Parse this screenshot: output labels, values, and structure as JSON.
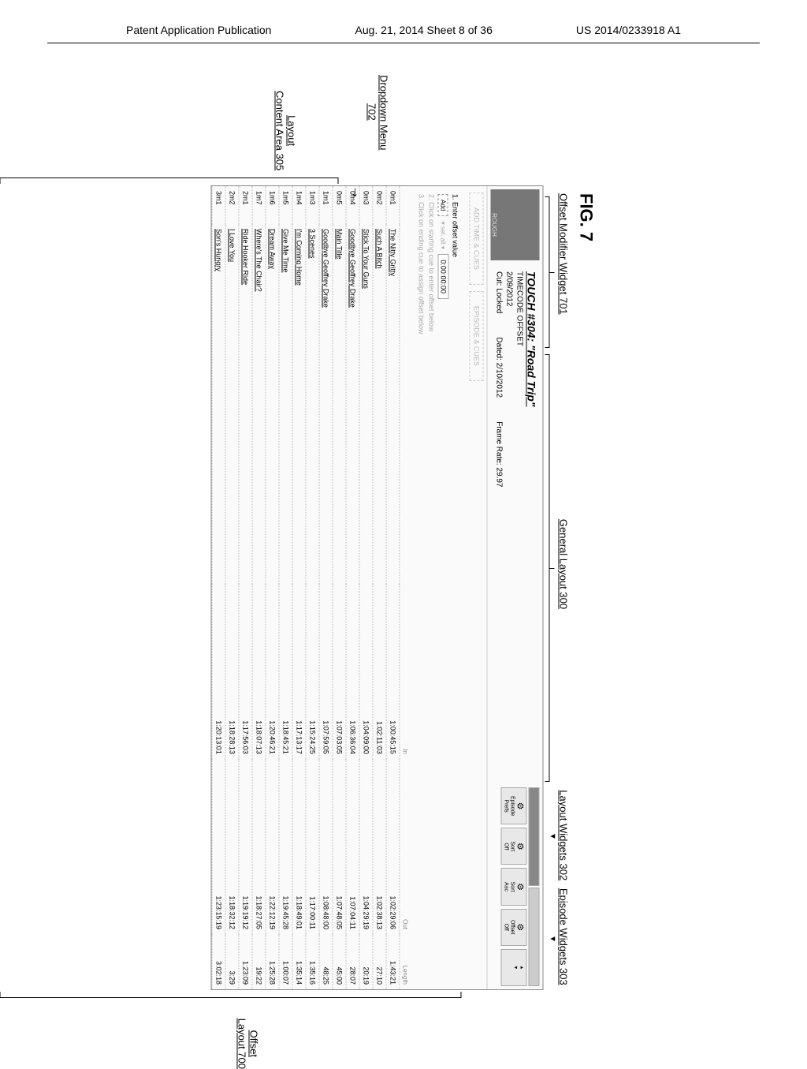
{
  "header": {
    "left": "Patent Application Publication",
    "center": "Aug. 21, 2014  Sheet 8 of 36",
    "right": "US 2014/0233918 A1"
  },
  "figure_label": "FIG. 7",
  "labels": {
    "offset_modifier": "Offset Modifier Widget 701",
    "general_layout": "General Layout 300",
    "layout_widgets": "Layout Widgets 302",
    "episode_widgets": "Episode Widgets 303",
    "dropdown_menu_a": "Dropdown Menu",
    "dropdown_menu_b": "702",
    "layout_content_a": "Layout",
    "layout_content_b": "Content Area 305",
    "offset_layout_a": "Offset",
    "offset_layout_b": "Layout 700"
  },
  "hdr": {
    "thumb_text": "ROUGH",
    "title": "TOUCH #304: \"Road Trip\"",
    "sub1": "TIMECODE OFFSET",
    "sub2": "2/09/2012",
    "cut": "Cut: Locked",
    "dated": "Dated: 2/10/2012",
    "frame": "Frame Rate: 29.97"
  },
  "btns": {
    "ep_prefs": "Episode\nPrefs",
    "sort_off": "Sort\nOff",
    "sort_asc": "Sort\nAsc",
    "offset_off": "Offset\nOff",
    "updown": "▴\n▾"
  },
  "ghost": {
    "a": "ADD TIME & CUES",
    "b": "EPISODE & CUES"
  },
  "steps": {
    "s1": "1.  Enter offset value",
    "dd": "Add",
    "dd_hint": "▾ sel. all  ▾",
    "entry": "0:00:00:00",
    "s2": "2.  Click on starting cue to enter offset below",
    "s3": "3.  Click on ending cue to assign offset below"
  },
  "thead": {
    "c1": "",
    "c2": "",
    "c3": "In",
    "c4": "Out",
    "c5": "Length"
  },
  "rows": [
    {
      "cue": "0m1",
      "title": "The Nitty Gritty",
      "in": "1:00:45:15",
      "out": "1:02:29:06",
      "len": "1:43:21"
    },
    {
      "cue": "0m2",
      "title": "Such A Bitch",
      "in": "1:02:11:03",
      "out": "1:02:38:13",
      "len": "27:10"
    },
    {
      "cue": "0m3",
      "title": "Stick To Your Guns",
      "in": "1:04:09:00",
      "out": "1:04:29:19",
      "len": "20:19"
    },
    {
      "cue": "0m4",
      "title": "Goodbye Geoffrey Drake",
      "in": "1:06:36:04",
      "out": "1:07:04:11",
      "len": "28:07"
    },
    {
      "cue": "0m5",
      "title": "Main Title",
      "in": "1:07:03:05",
      "out": "1:07:48:05",
      "len": "45:00"
    },
    {
      "cue": "1m1",
      "title": "Goodbye Geoffrey Drake",
      "in": "1:07:59:05",
      "out": "1:08:48:00",
      "len": "48:25"
    },
    {
      "cue": "1m3",
      "title": "3 Scenes",
      "in": "1:15:24:25",
      "out": "1:17:00:11",
      "len": "1:35:16"
    },
    {
      "cue": "1m4",
      "title": "I'm Coming Home",
      "in": "1:17:13:17",
      "out": "1:18:49:01",
      "len": "1:35:14"
    },
    {
      "cue": "1m5",
      "title": "Give Me Time",
      "in": "1:18:45:21",
      "out": "1:19:45:28",
      "len": "1:00:07"
    },
    {
      "cue": "1m6",
      "title": "Dream Away",
      "in": "1:20:46:21",
      "out": "1:22:12:19",
      "len": "1:25:28"
    },
    {
      "cue": "1m7",
      "title": "Where's The Chair?",
      "in": "1:18:07:13",
      "out": "1:18:27:05",
      "len": "19:22"
    },
    {
      "cue": "2m1",
      "title": "Ride Hooker Ride",
      "in": "1:17:56:03",
      "out": "1:19:19:12",
      "len": "1:23:09"
    },
    {
      "cue": "2m2",
      "title": "I Love You",
      "in": "1:18:28:13",
      "out": "1:18:32:12",
      "len": "3:29"
    },
    {
      "cue": "3m1",
      "title": "Son's Hungry",
      "in": "1:20:13:01",
      "out": "1:23:15:19",
      "len": "3:02:18"
    }
  ]
}
